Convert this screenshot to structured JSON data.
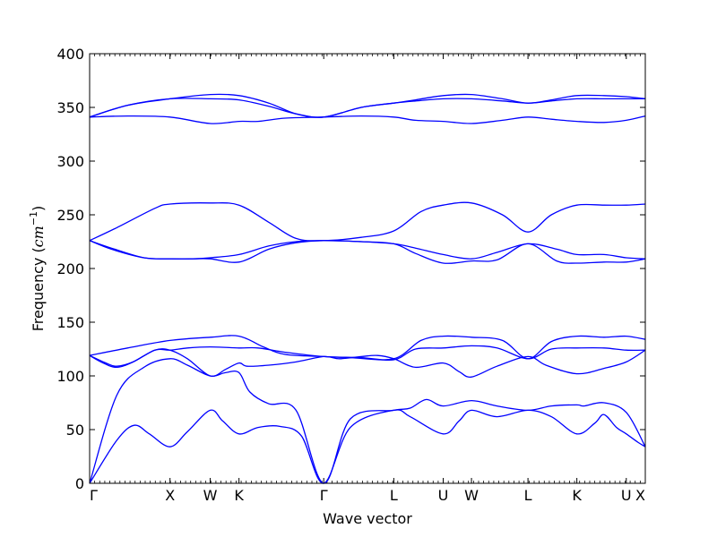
{
  "chart_data": {
    "type": "line",
    "title": "",
    "xlabel": "Wave vector",
    "ylabel_text": "Frequency (",
    "ylabel_unit_base": "cm",
    "ylabel_unit_exp": "−1",
    "ylabel_close": ")",
    "ylim": [
      0,
      400
    ],
    "yticks": [
      0,
      50,
      100,
      150,
      200,
      250,
      300,
      350,
      400
    ],
    "grid": false,
    "color": "#0000ff",
    "xlim": [
      0,
      10.23
    ],
    "xticks": [
      {
        "x": 0.0,
        "label": "Γ"
      },
      {
        "x": 1.48,
        "label": "X"
      },
      {
        "x": 2.22,
        "label": "W"
      },
      {
        "x": 2.75,
        "label": "K"
      },
      {
        "x": 4.31,
        "label": "Γ"
      },
      {
        "x": 5.6,
        "label": "L"
      },
      {
        "x": 6.51,
        "label": "U"
      },
      {
        "x": 7.03,
        "label": "W"
      },
      {
        "x": 8.07,
        "label": "L"
      },
      {
        "x": 8.97,
        "label": "K"
      },
      {
        "x": 9.88,
        "label": "U"
      },
      {
        "x": 10.23,
        "label": "X"
      }
    ],
    "series": [
      {
        "points": [
          [
            0,
            0
          ],
          [
            0.5,
            40
          ],
          [
            0.82,
            54
          ],
          [
            1.1,
            46
          ],
          [
            1.48,
            34
          ],
          [
            1.8,
            48
          ],
          [
            2.22,
            68
          ],
          [
            2.45,
            58
          ],
          [
            2.75,
            46
          ],
          [
            3.1,
            52
          ],
          [
            3.5,
            53
          ],
          [
            3.9,
            44
          ],
          [
            4.31,
            0
          ],
          [
            4.8,
            52
          ],
          [
            5.6,
            68
          ],
          [
            5.9,
            62
          ],
          [
            6.51,
            46
          ],
          [
            6.8,
            58
          ],
          [
            7.03,
            68
          ],
          [
            7.5,
            62
          ],
          [
            8.07,
            68
          ],
          [
            8.5,
            62
          ],
          [
            8.97,
            46
          ],
          [
            9.3,
            56
          ],
          [
            9.47,
            64
          ],
          [
            9.7,
            52
          ],
          [
            9.88,
            46
          ],
          [
            10.1,
            38
          ],
          [
            10.23,
            34
          ]
        ]
      },
      {
        "points": [
          [
            0,
            0
          ],
          [
            0.5,
            82
          ],
          [
            1.0,
            108
          ],
          [
            1.48,
            116
          ],
          [
            1.8,
            110
          ],
          [
            2.22,
            100
          ],
          [
            2.5,
            103
          ],
          [
            2.75,
            103
          ],
          [
            2.95,
            85
          ],
          [
            3.3,
            74
          ],
          [
            3.8,
            68
          ],
          [
            4.31,
            0
          ],
          [
            4.8,
            60
          ],
          [
            5.6,
            68
          ],
          [
            5.9,
            70
          ],
          [
            6.2,
            78
          ],
          [
            6.51,
            72
          ],
          [
            7.03,
            77
          ],
          [
            7.5,
            72
          ],
          [
            8.07,
            68
          ],
          [
            8.5,
            72
          ],
          [
            8.97,
            73
          ],
          [
            9.1,
            72
          ],
          [
            9.47,
            75
          ],
          [
            9.88,
            66
          ],
          [
            10.23,
            34
          ]
        ]
      },
      {
        "points": [
          [
            0,
            119
          ],
          [
            0.25,
            112
          ],
          [
            0.5,
            108
          ],
          [
            0.8,
            113
          ],
          [
            1.2,
            124
          ],
          [
            1.48,
            124
          ],
          [
            1.8,
            116
          ],
          [
            2.22,
            100
          ],
          [
            2.5,
            106
          ],
          [
            2.75,
            112
          ],
          [
            2.9,
            109
          ],
          [
            3.3,
            110
          ],
          [
            3.8,
            113
          ],
          [
            4.31,
            118
          ],
          [
            4.6,
            116
          ],
          [
            5.0,
            118
          ],
          [
            5.3,
            119
          ],
          [
            5.6,
            116
          ],
          [
            6.0,
            108
          ],
          [
            6.51,
            112
          ],
          [
            6.8,
            104
          ],
          [
            7.03,
            99
          ],
          [
            7.5,
            109
          ],
          [
            8.07,
            118
          ],
          [
            8.4,
            110
          ],
          [
            8.97,
            102
          ],
          [
            9.47,
            107
          ],
          [
            9.88,
            113
          ],
          [
            10.23,
            124
          ]
        ]
      },
      {
        "points": [
          [
            0,
            119
          ],
          [
            0.3,
            112
          ],
          [
            0.5,
            109
          ],
          [
            0.8,
            113
          ],
          [
            1.2,
            124
          ],
          [
            1.48,
            124
          ],
          [
            1.8,
            126
          ],
          [
            2.22,
            127
          ],
          [
            2.75,
            126
          ],
          [
            3.1,
            126
          ],
          [
            3.6,
            122
          ],
          [
            4.31,
            118
          ],
          [
            5.0,
            117
          ],
          [
            5.6,
            115
          ],
          [
            6.0,
            125
          ],
          [
            6.51,
            126
          ],
          [
            7.03,
            128
          ],
          [
            7.5,
            126
          ],
          [
            8.07,
            116
          ],
          [
            8.5,
            125
          ],
          [
            8.97,
            126
          ],
          [
            9.47,
            126
          ],
          [
            9.88,
            124
          ],
          [
            10.23,
            124
          ]
        ]
      },
      {
        "points": [
          [
            0,
            119
          ],
          [
            0.7,
            126
          ],
          [
            1.48,
            133
          ],
          [
            2.22,
            136
          ],
          [
            2.75,
            137
          ],
          [
            3.2,
            127
          ],
          [
            3.6,
            120
          ],
          [
            4.31,
            118
          ],
          [
            4.8,
            117
          ],
          [
            5.6,
            116
          ],
          [
            6.1,
            133
          ],
          [
            6.51,
            137
          ],
          [
            7.03,
            136
          ],
          [
            7.6,
            133
          ],
          [
            8.07,
            116
          ],
          [
            8.5,
            132
          ],
          [
            8.97,
            137
          ],
          [
            9.47,
            136
          ],
          [
            9.88,
            137
          ],
          [
            10.23,
            134
          ]
        ]
      },
      {
        "points": [
          [
            0,
            226
          ],
          [
            0.4,
            218
          ],
          [
            1.0,
            210
          ],
          [
            1.48,
            209
          ],
          [
            1.9,
            209
          ],
          [
            2.22,
            209
          ],
          [
            2.75,
            206
          ],
          [
            3.3,
            218
          ],
          [
            3.8,
            224
          ],
          [
            4.31,
            226
          ],
          [
            5.0,
            225
          ],
          [
            5.6,
            223
          ],
          [
            6.0,
            214
          ],
          [
            6.51,
            205
          ],
          [
            7.03,
            207
          ],
          [
            7.5,
            208
          ],
          [
            8.07,
            223
          ],
          [
            8.6,
            207
          ],
          [
            8.97,
            205
          ],
          [
            9.47,
            206
          ],
          [
            9.88,
            206
          ],
          [
            10.23,
            209
          ]
        ]
      },
      {
        "points": [
          [
            0,
            226
          ],
          [
            0.4,
            219
          ],
          [
            1.0,
            210
          ],
          [
            1.48,
            209
          ],
          [
            1.9,
            209
          ],
          [
            2.22,
            210
          ],
          [
            2.75,
            213
          ],
          [
            3.3,
            221
          ],
          [
            3.8,
            225
          ],
          [
            4.31,
            226
          ],
          [
            5.0,
            225
          ],
          [
            5.6,
            223
          ],
          [
            6.0,
            219
          ],
          [
            6.51,
            213
          ],
          [
            7.03,
            209
          ],
          [
            7.5,
            215
          ],
          [
            8.07,
            223
          ],
          [
            8.6,
            218
          ],
          [
            8.97,
            213
          ],
          [
            9.47,
            213
          ],
          [
            9.88,
            210
          ],
          [
            10.23,
            209
          ]
        ]
      },
      {
        "points": [
          [
            0,
            226
          ],
          [
            0.5,
            238
          ],
          [
            1.2,
            256
          ],
          [
            1.48,
            260
          ],
          [
            2.22,
            261
          ],
          [
            2.75,
            259
          ],
          [
            3.3,
            243
          ],
          [
            3.8,
            228
          ],
          [
            4.31,
            226
          ],
          [
            5.0,
            229
          ],
          [
            5.6,
            235
          ],
          [
            6.1,
            253
          ],
          [
            6.51,
            259
          ],
          [
            7.03,
            261
          ],
          [
            7.6,
            250
          ],
          [
            8.07,
            234
          ],
          [
            8.5,
            250
          ],
          [
            8.97,
            259
          ],
          [
            9.47,
            259
          ],
          [
            9.88,
            259
          ],
          [
            10.23,
            260
          ]
        ]
      },
      {
        "points": [
          [
            0,
            341
          ],
          [
            0.7,
            342
          ],
          [
            1.48,
            341
          ],
          [
            2.22,
            335
          ],
          [
            2.75,
            337
          ],
          [
            3.1,
            337
          ],
          [
            3.6,
            340
          ],
          [
            4.31,
            341
          ],
          [
            5.0,
            342
          ],
          [
            5.6,
            341
          ],
          [
            6.0,
            338
          ],
          [
            6.51,
            337
          ],
          [
            7.03,
            335
          ],
          [
            7.6,
            338
          ],
          [
            8.07,
            341
          ],
          [
            8.5,
            339
          ],
          [
            8.97,
            337
          ],
          [
            9.47,
            336
          ],
          [
            9.88,
            338
          ],
          [
            10.23,
            342
          ]
        ]
      },
      {
        "points": [
          [
            0,
            341
          ],
          [
            0.7,
            352
          ],
          [
            1.48,
            358
          ],
          [
            2.22,
            358
          ],
          [
            2.75,
            357
          ],
          [
            3.3,
            351
          ],
          [
            3.8,
            344
          ],
          [
            4.31,
            341
          ],
          [
            5.0,
            350
          ],
          [
            5.6,
            354
          ],
          [
            6.0,
            356
          ],
          [
            6.51,
            358
          ],
          [
            7.03,
            358
          ],
          [
            7.6,
            356
          ],
          [
            8.07,
            354
          ],
          [
            8.5,
            356
          ],
          [
            8.97,
            358
          ],
          [
            9.47,
            358
          ],
          [
            9.88,
            358
          ],
          [
            10.23,
            358
          ]
        ]
      },
      {
        "points": [
          [
            0,
            341
          ],
          [
            0.7,
            352
          ],
          [
            1.48,
            358
          ],
          [
            2.22,
            362
          ],
          [
            2.75,
            361
          ],
          [
            3.3,
            354
          ],
          [
            3.8,
            344
          ],
          [
            4.31,
            341
          ],
          [
            5.0,
            350
          ],
          [
            5.6,
            354
          ],
          [
            6.0,
            357
          ],
          [
            6.51,
            361
          ],
          [
            7.03,
            362
          ],
          [
            7.6,
            358
          ],
          [
            8.07,
            354
          ],
          [
            8.5,
            357
          ],
          [
            8.97,
            361
          ],
          [
            9.47,
            361
          ],
          [
            9.88,
            360
          ],
          [
            10.23,
            358
          ]
        ]
      }
    ]
  }
}
